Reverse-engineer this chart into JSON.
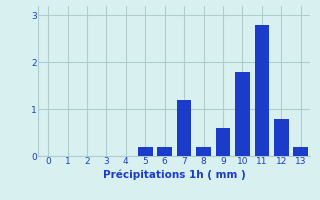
{
  "categories": [
    0,
    1,
    2,
    3,
    4,
    5,
    6,
    7,
    8,
    9,
    10,
    11,
    12,
    13
  ],
  "values": [
    0,
    0,
    0,
    0,
    0,
    0.2,
    0.2,
    1.2,
    0.2,
    0.6,
    1.8,
    2.8,
    0.8,
    0.2
  ],
  "bar_color": "#1a3cc8",
  "background_color": "#d8f0f0",
  "grid_color": "#b0cccc",
  "xlabel": "Précipitations 1h ( mm )",
  "xlabel_color": "#1a3cc8",
  "tick_color": "#1a3cc8",
  "ylim": [
    0,
    3.2
  ],
  "yticks": [
    0,
    1,
    2,
    3
  ],
  "bar_width": 0.75
}
